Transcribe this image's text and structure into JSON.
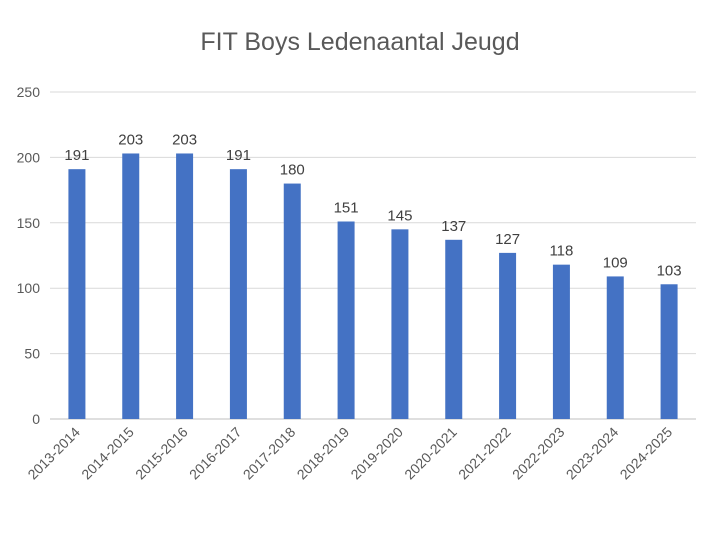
{
  "chart_data": {
    "type": "bar",
    "title": "FIT Boys Ledenaantal Jeugd",
    "categories": [
      "2013-2014",
      "2014-2015",
      "2015-2016",
      "2016-2017",
      "2017-2018",
      "2018-2019",
      "2019-2020",
      "2020-2021",
      "2021-2022",
      "2022-2023",
      "2023-2024",
      "2024-2025"
    ],
    "values": [
      191,
      203,
      203,
      191,
      180,
      151,
      145,
      137,
      127,
      118,
      109,
      103
    ],
    "xlabel": "",
    "ylabel": "",
    "ylim": [
      0,
      250
    ],
    "yticks": [
      0,
      50,
      100,
      150,
      200,
      250
    ],
    "grid": true,
    "legend": "none",
    "bar_color": "#4472C4",
    "grid_color": "#D9D9D9"
  }
}
